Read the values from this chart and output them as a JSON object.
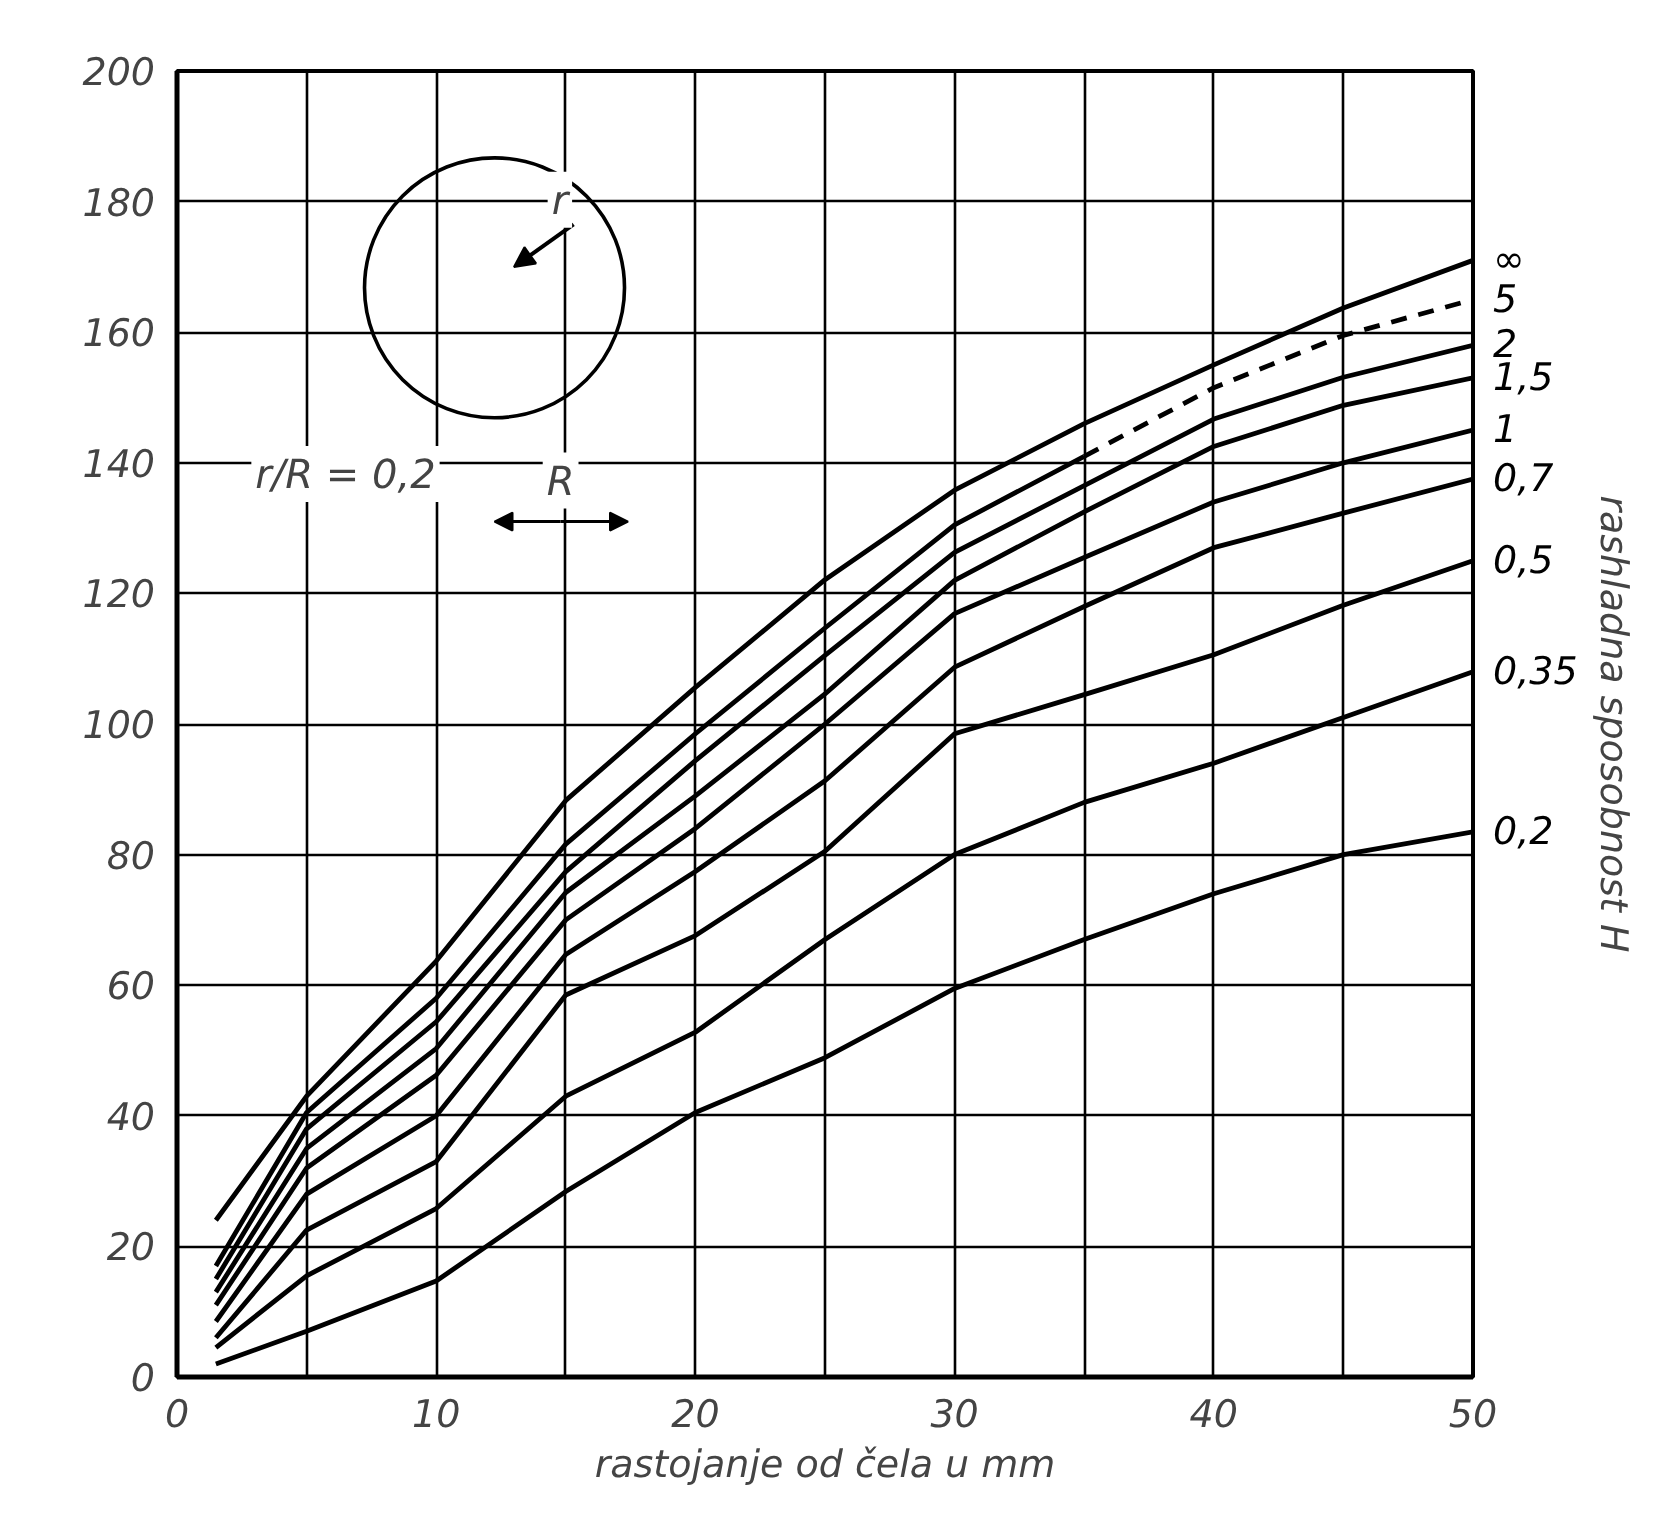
{
  "chart_data": {
    "type": "line",
    "xlabel": "rastojanje od čela u mm",
    "ylabel": "rashladna sposobnost H",
    "x": [
      1.5,
      5,
      10,
      15,
      20,
      25,
      30,
      35,
      40,
      45,
      50
    ],
    "xlim": [
      0,
      50
    ],
    "ylim": [
      0,
      200
    ],
    "xticks": [
      0,
      {
        "value": 5,
        "label": null
      },
      10,
      {
        "value": 15,
        "label": null
      },
      20,
      {
        "value": 25,
        "label": null
      },
      30,
      {
        "value": 35,
        "label": null
      },
      40,
      {
        "value": 45,
        "label": null
      },
      50
    ],
    "yticks": [
      0,
      20,
      40,
      60,
      80,
      100,
      120,
      140,
      160,
      180,
      200
    ],
    "grid": true,
    "marker": "none",
    "line_style": "solid",
    "annotations": [
      "r",
      "R",
      "r/R = 0,2"
    ],
    "series": [
      {
        "name": "∞",
        "color": "#000000",
        "values": [
          24,
          43,
          63.7,
          88.3,
          105.6,
          122.1,
          135.8,
          146,
          155,
          163.7,
          171
        ]
      },
      {
        "color": "#000000",
        "x": [
          1.5,
          5,
          10,
          15,
          20,
          25,
          30,
          35
        ],
        "values": [
          17,
          40.5,
          58,
          81.6,
          98.5,
          114.7,
          130.5,
          141
        ]
      },
      {
        "name": "5",
        "color": "#000000",
        "line_style": "dashed",
        "x": [
          35,
          40,
          45,
          50
        ],
        "values": [
          141,
          151.5,
          159.5,
          165
        ]
      },
      {
        "name": "2",
        "color": "#000000",
        "values": [
          15,
          38,
          54.4,
          77.4,
          94.4,
          110.5,
          126.3,
          136.5,
          146.7,
          153.1,
          158
        ]
      },
      {
        "name": "1,5",
        "color": "#000000",
        "values": [
          13,
          35,
          50.3,
          74.2,
          89,
          104.6,
          122,
          132.5,
          142.5,
          148.8,
          153
        ]
      },
      {
        "name": "1",
        "color": "#000000",
        "values": [
          11,
          32,
          46.2,
          70,
          84,
          100,
          116.9,
          125.5,
          134,
          140,
          145
        ]
      },
      {
        "name": "0,7",
        "color": "#000000",
        "values": [
          8.5,
          28,
          40,
          64.7,
          77.4,
          91.3,
          108.7,
          118,
          127,
          132.3,
          137.5
        ]
      },
      {
        "name": "0,5",
        "color": "#000000",
        "values": [
          6,
          22.5,
          33,
          58.5,
          67.6,
          80.5,
          98.5,
          104.5,
          110.6,
          118.2,
          125
        ]
      },
      {
        "name": "0,35",
        "color": "#000000",
        "values": [
          4.5,
          15.5,
          25.8,
          43,
          52.8,
          67,
          80,
          88,
          94,
          101,
          108
        ]
      },
      {
        "name": "0,2",
        "color": "#000000",
        "values": [
          2,
          7,
          14.7,
          28.4,
          40.5,
          48.9,
          59.5,
          67,
          74,
          80,
          83.5
        ]
      }
    ]
  }
}
